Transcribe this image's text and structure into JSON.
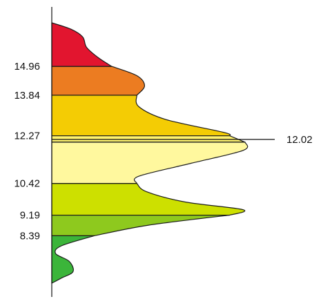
{
  "chart_data": {
    "type": "area",
    "orientation": "vertical-profile",
    "title": "",
    "xlabel": "",
    "ylabel": "",
    "ylim": [
      6.5,
      16.65
    ],
    "xlim": [
      0,
      1
    ],
    "grid": false,
    "legend": "none",
    "tick_labels": [
      "14.96",
      "13.84",
      "12.27",
      "10.42",
      "9.19",
      "8.39"
    ],
    "annotation": {
      "label": "12.02",
      "value": 12.02
    },
    "profile": [
      {
        "y": 16.65,
        "x": 0.0
      },
      {
        "y": 16.4,
        "x": 0.1
      },
      {
        "y": 16.1,
        "x": 0.16
      },
      {
        "y": 15.7,
        "x": 0.18
      },
      {
        "y": 15.3,
        "x": 0.24
      },
      {
        "y": 14.96,
        "x": 0.31
      },
      {
        "y": 14.6,
        "x": 0.44
      },
      {
        "y": 14.2,
        "x": 0.48
      },
      {
        "y": 13.84,
        "x": 0.44
      },
      {
        "y": 13.4,
        "x": 0.45
      },
      {
        "y": 12.9,
        "x": 0.59
      },
      {
        "y": 12.4,
        "x": 0.89
      },
      {
        "y": 12.27,
        "x": 0.92
      },
      {
        "y": 12.02,
        "x": 1.0
      },
      {
        "y": 11.7,
        "x": 0.99
      },
      {
        "y": 11.2,
        "x": 0.72
      },
      {
        "y": 10.7,
        "x": 0.45
      },
      {
        "y": 10.42,
        "x": 0.44
      },
      {
        "y": 10.1,
        "x": 0.49
      },
      {
        "y": 9.7,
        "x": 0.69
      },
      {
        "y": 9.4,
        "x": 0.99
      },
      {
        "y": 9.19,
        "x": 0.92
      },
      {
        "y": 8.8,
        "x": 0.5
      },
      {
        "y": 8.39,
        "x": 0.22
      },
      {
        "y": 8.0,
        "x": 0.05
      },
      {
        "y": 7.7,
        "x": 0.02
      },
      {
        "y": 7.4,
        "x": 0.09
      },
      {
        "y": 7.0,
        "x": 0.11
      },
      {
        "y": 6.75,
        "x": 0.05
      },
      {
        "y": 6.55,
        "x": 0.0
      }
    ],
    "bands": [
      {
        "from": 14.96,
        "to": 16.65,
        "color": "#e2152f"
      },
      {
        "from": 13.84,
        "to": 14.96,
        "color": "#ec7c21"
      },
      {
        "from": 12.27,
        "to": 13.84,
        "color": "#f4cc04"
      },
      {
        "from": 12.02,
        "to": 12.27,
        "color": "#fff36e"
      },
      {
        "from": 10.42,
        "to": 12.02,
        "color": "#fff89e"
      },
      {
        "from": 9.19,
        "to": 10.42,
        "color": "#cde000"
      },
      {
        "from": 8.39,
        "to": 9.19,
        "color": "#8ec91e"
      },
      {
        "from": 6.55,
        "to": 8.39,
        "color": "#3bb53a"
      }
    ]
  }
}
